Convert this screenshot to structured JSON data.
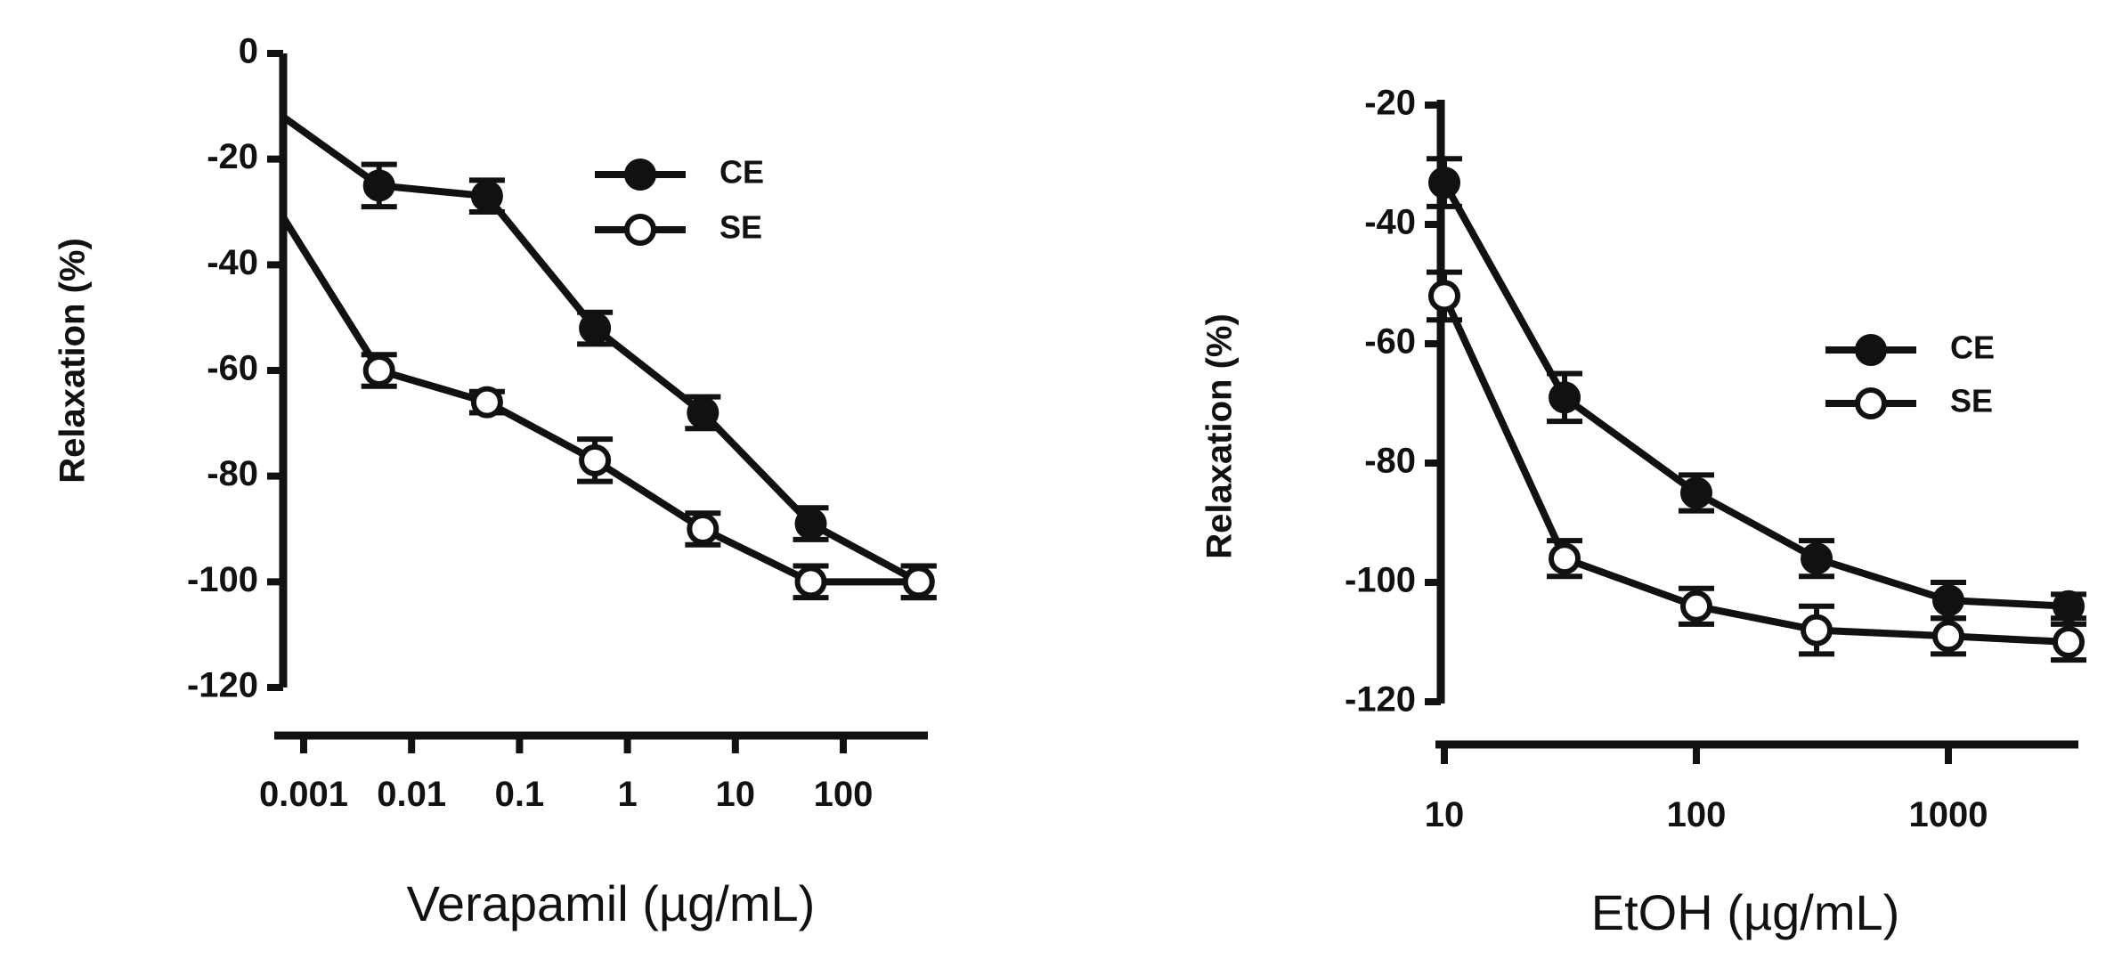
{
  "chart_data": [
    {
      "type": "line",
      "xscale": "log",
      "xlabel": "Verapamil (µg/mL)",
      "ylabel": "Relaxation (%)",
      "ylim": [
        -120,
        0
      ],
      "yticks": [
        "0",
        "-20",
        "-40",
        "-60",
        "-80",
        "-100",
        "-120"
      ],
      "yticks_values": [
        0,
        -20,
        -40,
        -60,
        -80,
        -100,
        -120
      ],
      "xticks": [
        "0.001",
        "0.01",
        "0.1",
        "1",
        "10",
        "100"
      ],
      "xticks_values": [
        0.001,
        0.01,
        0.1,
        1,
        10,
        100
      ],
      "grid": false,
      "legend": "top-right",
      "series": [
        {
          "name": "CE",
          "marker": "filled",
          "start_value": -12,
          "x": [
            0.005,
            0.05,
            0.5,
            5,
            50,
            500
          ],
          "values": [
            -25,
            -27,
            -52,
            -68,
            -89,
            -100
          ],
          "errors": [
            4,
            3,
            3,
            3,
            3,
            3
          ]
        },
        {
          "name": "SE",
          "marker": "open",
          "start_value": -31,
          "x": [
            0.005,
            0.05,
            0.5,
            5,
            50,
            500
          ],
          "values": [
            -60,
            -66,
            -77,
            -90,
            -100,
            -100
          ],
          "errors": [
            3,
            2,
            4,
            3,
            3,
            3
          ]
        }
      ]
    },
    {
      "type": "line",
      "xscale": "log",
      "xlabel": "EtOH (µg/mL)",
      "ylabel": "Relaxation (%)",
      "ylim": [
        -120,
        -20
      ],
      "yticks": [
        "-20",
        "-40",
        "-60",
        "-80",
        "-100",
        "-120"
      ],
      "yticks_values": [
        -20,
        -40,
        -60,
        -80,
        -100,
        -120
      ],
      "xticks": [
        "10",
        "100",
        "1000"
      ],
      "xticks_values": [
        10,
        100,
        1000
      ],
      "grid": false,
      "legend": "middle-right",
      "series": [
        {
          "name": "CE",
          "marker": "filled",
          "x": [
            10,
            30,
            100,
            300,
            1000,
            3000
          ],
          "values": [
            -33,
            -69,
            -85,
            -96,
            -103,
            -104
          ],
          "errors": [
            4,
            4,
            3,
            3,
            3,
            2
          ]
        },
        {
          "name": "SE",
          "marker": "open",
          "x": [
            10,
            30,
            100,
            300,
            1000,
            3000
          ],
          "values": [
            -52,
            -96,
            -104,
            -108,
            -109,
            -110
          ],
          "errors": [
            4,
            3,
            3,
            4,
            3,
            3
          ]
        }
      ]
    }
  ]
}
